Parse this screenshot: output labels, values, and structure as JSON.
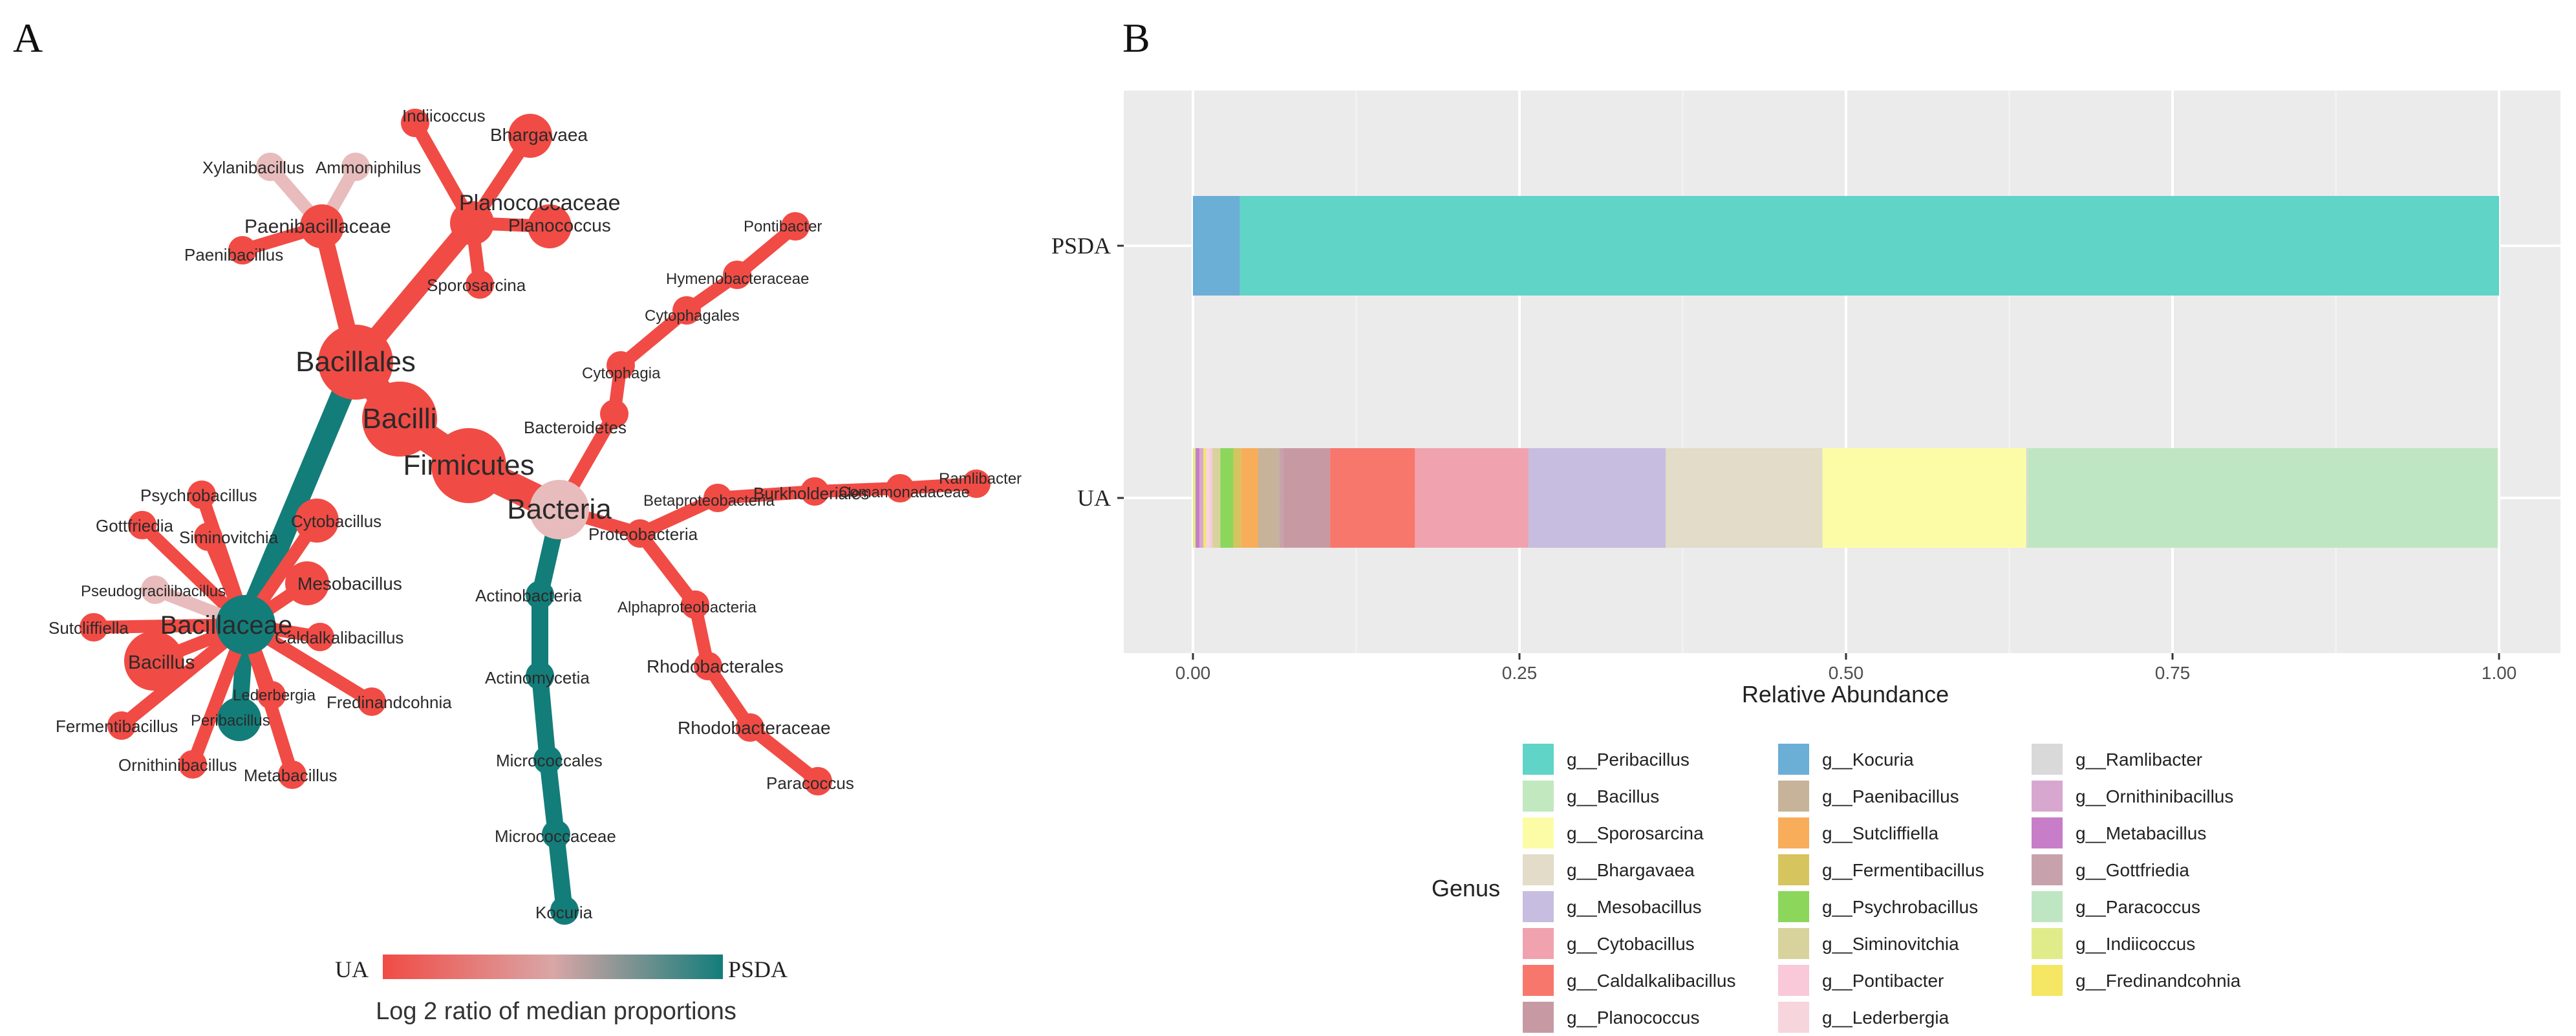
{
  "panel_a": {
    "letter": "A",
    "colors": {
      "ua": "#f14b45",
      "psda": "#137d7a",
      "neutral": "#e8bcbc"
    },
    "nodes": [
      {
        "id": "bacteria",
        "label": "Bacteria",
        "size": "l",
        "c": "neutral"
      },
      {
        "id": "firmicutes",
        "label": "Firmicutes",
        "size": "xl",
        "c": "ua"
      },
      {
        "id": "bacilli",
        "label": "Bacilli",
        "size": "xl",
        "c": "ua"
      },
      {
        "id": "bacillales",
        "label": "Bacillales",
        "size": "xl",
        "c": "ua"
      },
      {
        "id": "bacillaceae",
        "label": "Bacillaceae",
        "size": "l",
        "c": "psda"
      },
      {
        "id": "planococcaceae",
        "label": "Planococcaceae",
        "size": "m",
        "c": "ua"
      },
      {
        "id": "paenibacillaceae",
        "label": "Paenibacillaceae",
        "size": "m",
        "c": "ua"
      },
      {
        "id": "xylanibacillus",
        "label": "Xylanibacillus",
        "size": "s",
        "c": "neutral"
      },
      {
        "id": "ammoniphilus",
        "label": "Ammoniphilus",
        "size": "s",
        "c": "neutral"
      },
      {
        "id": "paenibacillus",
        "label": "Paenibacillus",
        "size": "s",
        "c": "ua"
      },
      {
        "id": "indiicoccus",
        "label": "Indiicoccus",
        "size": "s",
        "c": "ua"
      },
      {
        "id": "bhargavaea",
        "label": "Bhargavaea",
        "size": "m",
        "c": "ua"
      },
      {
        "id": "planococcus",
        "label": "Planococcus",
        "size": "m",
        "c": "ua"
      },
      {
        "id": "sporosarcina",
        "label": "Sporosarcina",
        "size": "s",
        "c": "ua"
      },
      {
        "id": "psychrobacillus",
        "label": "Psychrobacillus",
        "size": "s",
        "c": "ua"
      },
      {
        "id": "gottfriedia",
        "label": "Gottfriedia",
        "size": "s",
        "c": "ua"
      },
      {
        "id": "siminovitchia",
        "label": "Siminovitchia",
        "size": "s",
        "c": "ua"
      },
      {
        "id": "cytobacillus",
        "label": "Cytobacillus",
        "size": "m",
        "c": "ua"
      },
      {
        "id": "pseudogracilibacillus",
        "label": "Pseudogracilibacillus",
        "size": "s",
        "c": "neutral"
      },
      {
        "id": "mesobacillus",
        "label": "Mesobacillus",
        "size": "m",
        "c": "ua"
      },
      {
        "id": "sutcliffiella",
        "label": "Sutcliffiella",
        "size": "s",
        "c": "ua"
      },
      {
        "id": "caldalkalibacillus",
        "label": "Caldalkalibacillus",
        "size": "s",
        "c": "ua"
      },
      {
        "id": "bacillus",
        "label": "Bacillus",
        "size": "l",
        "c": "ua"
      },
      {
        "id": "lederbergia",
        "label": "Lederbergia",
        "size": "s",
        "c": "ua"
      },
      {
        "id": "fredinandcohnia",
        "label": "Fredinandcohnia",
        "size": "s",
        "c": "ua"
      },
      {
        "id": "fermentibacillus",
        "label": "Fermentibacillus",
        "size": "s",
        "c": "ua"
      },
      {
        "id": "peribacillus",
        "label": "Peribacillus",
        "size": "m",
        "c": "psda"
      },
      {
        "id": "ornithinibacillus",
        "label": "Ornithinibacillus",
        "size": "s",
        "c": "ua"
      },
      {
        "id": "metabacillus",
        "label": "Metabacillus",
        "size": "s",
        "c": "ua"
      },
      {
        "id": "bacteroidetes",
        "label": "Bacteroidetes",
        "size": "s",
        "c": "ua"
      },
      {
        "id": "cytophagia",
        "label": "Cytophagia",
        "size": "s",
        "c": "ua"
      },
      {
        "id": "cytophagales",
        "label": "Cytophagales",
        "size": "s",
        "c": "ua"
      },
      {
        "id": "hymenobacteraceae",
        "label": "Hymenobacteraceae",
        "size": "s",
        "c": "ua"
      },
      {
        "id": "pontibacter",
        "label": "Pontibacter",
        "size": "s",
        "c": "ua"
      },
      {
        "id": "proteobacteria",
        "label": "Proteobacteria",
        "size": "s",
        "c": "ua"
      },
      {
        "id": "betaproteobacteria",
        "label": "Betaproteobacteria",
        "size": "s",
        "c": "ua"
      },
      {
        "id": "burkholderiales",
        "label": "Burkholderiales",
        "size": "s",
        "c": "ua"
      },
      {
        "id": "comamonadaceae",
        "label": "Comamonadaceae",
        "size": "s",
        "c": "ua"
      },
      {
        "id": "ramlibacter",
        "label": "Ramlibacter",
        "size": "s",
        "c": "ua"
      },
      {
        "id": "alphaproteobacteria",
        "label": "Alphaproteobacteria",
        "size": "s",
        "c": "ua"
      },
      {
        "id": "rhodobacterales",
        "label": "Rhodobacterales",
        "size": "s",
        "c": "ua"
      },
      {
        "id": "rhodobacteraceae",
        "label": "Rhodobacteraceae",
        "size": "s",
        "c": "ua"
      },
      {
        "id": "paracoccus",
        "label": "Paracoccus",
        "size": "s",
        "c": "ua"
      },
      {
        "id": "actinobacteria",
        "label": "Actinobacteria",
        "size": "s",
        "c": "psda"
      },
      {
        "id": "actinomycetia",
        "label": "Actinomycetia",
        "size": "s",
        "c": "psda"
      },
      {
        "id": "micrococcales",
        "label": "Micrococcales",
        "size": "s",
        "c": "psda"
      },
      {
        "id": "micrococcaceae",
        "label": "Micrococcaceae",
        "size": "s",
        "c": "psda"
      },
      {
        "id": "kocuria",
        "label": "Kocuria",
        "size": "s",
        "c": "psda"
      }
    ],
    "edges": [
      {
        "from": "bacteria",
        "to": "firmicutes",
        "c": "ua"
      },
      {
        "from": "firmicutes",
        "to": "bacilli",
        "c": "ua"
      },
      {
        "from": "bacilli",
        "to": "bacillales",
        "c": "ua"
      },
      {
        "from": "bacillales",
        "to": "bacillaceae",
        "c": "psda"
      },
      {
        "from": "bacillales",
        "to": "planococcaceae",
        "c": "ua"
      },
      {
        "from": "bacillales",
        "to": "paenibacillaceae",
        "c": "ua"
      },
      {
        "from": "paenibacillaceae",
        "to": "xylanibacillus",
        "c": "neutral"
      },
      {
        "from": "paenibacillaceae",
        "to": "ammoniphilus",
        "c": "neutral"
      },
      {
        "from": "paenibacillaceae",
        "to": "paenibacillus",
        "c": "ua"
      },
      {
        "from": "planococcaceae",
        "to": "indiicoccus",
        "c": "ua"
      },
      {
        "from": "planococcaceae",
        "to": "bhargavaea",
        "c": "ua"
      },
      {
        "from": "planococcaceae",
        "to": "planococcus",
        "c": "ua"
      },
      {
        "from": "planococcaceae",
        "to": "sporosarcina",
        "c": "ua"
      },
      {
        "from": "bacillaceae",
        "to": "psychrobacillus",
        "c": "ua"
      },
      {
        "from": "bacillaceae",
        "to": "gottfriedia",
        "c": "ua"
      },
      {
        "from": "bacillaceae",
        "to": "siminovitchia",
        "c": "ua"
      },
      {
        "from": "bacillaceae",
        "to": "cytobacillus",
        "c": "ua"
      },
      {
        "from": "bacillaceae",
        "to": "pseudogracilibacillus",
        "c": "neutral"
      },
      {
        "from": "bacillaceae",
        "to": "mesobacillus",
        "c": "ua"
      },
      {
        "from": "bacillaceae",
        "to": "sutcliffiella",
        "c": "ua"
      },
      {
        "from": "bacillaceae",
        "to": "caldalkalibacillus",
        "c": "ua"
      },
      {
        "from": "bacillaceae",
        "to": "bacillus",
        "c": "ua"
      },
      {
        "from": "bacillaceae",
        "to": "lederbergia",
        "c": "ua"
      },
      {
        "from": "bacillaceae",
        "to": "fredinandcohnia",
        "c": "ua"
      },
      {
        "from": "bacillaceae",
        "to": "fermentibacillus",
        "c": "ua"
      },
      {
        "from": "bacillaceae",
        "to": "peribacillus",
        "c": "psda"
      },
      {
        "from": "bacillaceae",
        "to": "ornithinibacillus",
        "c": "ua"
      },
      {
        "from": "bacillaceae",
        "to": "metabacillus",
        "c": "ua"
      },
      {
        "from": "bacteria",
        "to": "bacteroidetes",
        "c": "ua"
      },
      {
        "from": "bacteroidetes",
        "to": "cytophagia",
        "c": "ua"
      },
      {
        "from": "cytophagia",
        "to": "cytophagales",
        "c": "ua"
      },
      {
        "from": "cytophagales",
        "to": "hymenobacteraceae",
        "c": "ua"
      },
      {
        "from": "hymenobacteraceae",
        "to": "pontibacter",
        "c": "ua"
      },
      {
        "from": "bacteria",
        "to": "proteobacteria",
        "c": "ua"
      },
      {
        "from": "proteobacteria",
        "to": "betaproteobacteria",
        "c": "ua"
      },
      {
        "from": "betaproteobacteria",
        "to": "burkholderiales",
        "c": "ua"
      },
      {
        "from": "burkholderiales",
        "to": "comamonadaceae",
        "c": "ua"
      },
      {
        "from": "comamonadaceae",
        "to": "ramlibacter",
        "c": "ua"
      },
      {
        "from": "proteobacteria",
        "to": "alphaproteobacteria",
        "c": "ua"
      },
      {
        "from": "alphaproteobacteria",
        "to": "rhodobacterales",
        "c": "ua"
      },
      {
        "from": "rhodobacterales",
        "to": "rhodobacteraceae",
        "c": "ua"
      },
      {
        "from": "rhodobacteraceae",
        "to": "paracoccus",
        "c": "ua"
      },
      {
        "from": "bacteria",
        "to": "actinobacteria",
        "c": "psda"
      },
      {
        "from": "actinobacteria",
        "to": "actinomycetia",
        "c": "psda"
      },
      {
        "from": "actinomycetia",
        "to": "micrococcales",
        "c": "psda"
      },
      {
        "from": "micrococcales",
        "to": "micrococcaceae",
        "c": "psda"
      },
      {
        "from": "micrococcaceae",
        "to": "kocuria",
        "c": "psda"
      }
    ],
    "scale": {
      "left_label": "UA",
      "right_label": "PSDA",
      "title": "Log 2 ratio of median proportions"
    }
  },
  "chart_data": {
    "type": "bar",
    "orientation": "horizontal",
    "stacked": true,
    "panel_letter": "B",
    "categories": [
      "PSDA",
      "UA"
    ],
    "xlabel": "Relative Abundance",
    "ylabel": "",
    "xlim": [
      0,
      1
    ],
    "xticks": [
      "0.00",
      "0.25",
      "0.50",
      "0.75",
      "1.00"
    ],
    "legend_title": "Genus",
    "series": [
      {
        "name": "g__Kocuria",
        "color": "#6baed6",
        "values": [
          0.036,
          0.0
        ]
      },
      {
        "name": "g__Peribacillus",
        "color": "#5fd4c7",
        "values": [
          0.964,
          0.0
        ]
      },
      {
        "name": "g__Indiicoccus",
        "color": "#e0ec8a",
        "values": [
          0.0,
          0.002
        ]
      },
      {
        "name": "g__Metabacillus",
        "color": "#c77dc7",
        "values": [
          0.0,
          0.003
        ]
      },
      {
        "name": "g__Ornithinibacillus",
        "color": "#d7a7cf",
        "values": [
          0.0,
          0.003
        ]
      },
      {
        "name": "g__Fredinandcohnia",
        "color": "#f5e663",
        "values": [
          0.0,
          0.002
        ]
      },
      {
        "name": "g__Lederbergia",
        "color": "#f6d5dc",
        "values": [
          0.0,
          0.003
        ]
      },
      {
        "name": "g__Pontibacter",
        "color": "#f9c9d9",
        "values": [
          0.0,
          0.002
        ]
      },
      {
        "name": "g__Siminovitchia",
        "color": "#d8d39c",
        "values": [
          0.0,
          0.006
        ]
      },
      {
        "name": "g__Psychrobacillus",
        "color": "#8cd65c",
        "values": [
          0.0,
          0.01
        ]
      },
      {
        "name": "g__Fermentibacillus",
        "color": "#d6c45e",
        "values": [
          0.0,
          0.006
        ]
      },
      {
        "name": "g__Sutcliffiella",
        "color": "#f8ad5a",
        "values": [
          0.0,
          0.013
        ]
      },
      {
        "name": "g__Paenibacillus",
        "color": "#c6b39a",
        "values": [
          0.0,
          0.016
        ]
      },
      {
        "name": "g__Gottfriedia",
        "color": "#c7a2ad",
        "values": [
          0.0,
          0.003
        ]
      },
      {
        "name": "g__Planococcus",
        "color": "#c79aa3",
        "values": [
          0.0,
          0.036
        ]
      },
      {
        "name": "g__Caldalkalibacillus",
        "color": "#f8776d",
        "values": [
          0.0,
          0.065
        ]
      },
      {
        "name": "g__Cytobacillus",
        "color": "#f0a3ae",
        "values": [
          0.0,
          0.087
        ]
      },
      {
        "name": "g__Mesobacillus",
        "color": "#c6bde0",
        "values": [
          0.0,
          0.105
        ]
      },
      {
        "name": "g__Bhargavaea",
        "color": "#e2dcc8",
        "values": [
          0.0,
          0.12
        ]
      },
      {
        "name": "g__Sporosarcina",
        "color": "#fcfca6",
        "values": [
          0.0,
          0.156
        ]
      },
      {
        "name": "g__Ramlibacter",
        "color": "#d9d9d9",
        "values": [
          0.0,
          0.001
        ]
      },
      {
        "name": "g__Bacillus",
        "color": "#c2e8c0",
        "values": [
          0.0,
          0.001
        ]
      },
      {
        "name": "g__Paracoccus",
        "color": "#bfe6c2",
        "values": [
          0.0,
          0.359
        ]
      }
    ],
    "legend_order": [
      "g__Peribacillus",
      "g__Bacillus",
      "g__Sporosarcina",
      "g__Bhargavaea",
      "g__Mesobacillus",
      "g__Cytobacillus",
      "g__Caldalkalibacillus",
      "g__Planococcus",
      "g__Kocuria",
      "g__Paenibacillus",
      "g__Sutcliffiella",
      "g__Fermentibacillus",
      "g__Psychrobacillus",
      "g__Siminovitchia",
      "g__Pontibacter",
      "g__Lederbergia",
      "g__Ramlibacter",
      "g__Ornithinibacillus",
      "g__Metabacillus",
      "g__Gottfriedia",
      "g__Paracoccus",
      "g__Indiicoccus",
      "g__Fredinandcohnia"
    ]
  }
}
